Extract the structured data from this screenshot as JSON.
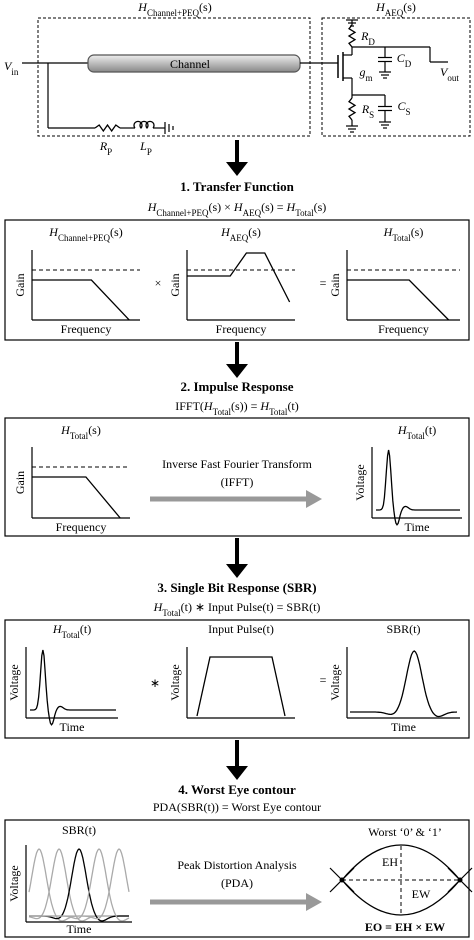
{
  "circuit": {
    "peq_label": {
      "sym": "H",
      "sub": "Channel+PEQ",
      "arg": "(s)"
    },
    "aeq_label": {
      "sym": "H",
      "sub": "AEQ",
      "arg": "(s)"
    },
    "vin": {
      "sym": "V",
      "sub": "in"
    },
    "channel": "Channel",
    "rp": {
      "sym": "R",
      "sub": "P"
    },
    "lp": {
      "sym": "L",
      "sub": "P"
    },
    "rd": {
      "sym": "R",
      "sub": "D"
    },
    "cd": {
      "sym": "C",
      "sub": "D"
    },
    "gm": {
      "sym": "g",
      "sub": "m"
    },
    "rs": {
      "sym": "R",
      "sub": "S"
    },
    "cs": {
      "sym": "C",
      "sub": "S"
    },
    "vout": {
      "sym": "V",
      "sub": "out"
    }
  },
  "steps": [
    {
      "title": "1. Transfer Function",
      "equation": [
        {
          "sym": "H",
          "sub": "Channel+PEQ",
          "arg": "(s)"
        },
        " × ",
        {
          "sym": "H",
          "sub": "AEQ",
          "arg": "(s)"
        },
        " = ",
        {
          "sym": "H",
          "sub": "Total",
          "arg": "(s)"
        }
      ],
      "panel": {
        "plots": [
          {
            "label": {
              "sym": "H",
              "sub": "Channel+PEQ",
              "arg": "(s)"
            },
            "ylabel": "Gain",
            "xlabel": "Frequency"
          },
          {
            "label": {
              "sym": "H",
              "sub": "AEQ",
              "arg": "(s)"
            },
            "ylabel": "Gain",
            "xlabel": "Frequency"
          },
          {
            "label": {
              "sym": "H",
              "sub": "Total",
              "arg": "(s)"
            },
            "ylabel": "Gain",
            "xlabel": "Frequency"
          }
        ],
        "operators": [
          "×",
          "="
        ]
      }
    },
    {
      "title": "2. Impulse Response",
      "equation": [
        "IFFT(",
        {
          "sym": "H",
          "sub": "Total",
          "arg": "(s)"
        },
        ") = ",
        {
          "sym": "H",
          "sub": "Total",
          "arg": "(t)"
        }
      ],
      "panel": {
        "plots": [
          {
            "label": {
              "sym": "H",
              "sub": "Total",
              "arg": "(s)"
            },
            "ylabel": "Gain",
            "xlabel": "Frequency"
          },
          {
            "label": {
              "sym": "H",
              "sub": "Total",
              "arg": "(t)"
            },
            "ylabel": "Voltage",
            "xlabel": "Time"
          }
        ],
        "arrow_text": [
          "Inverse Fast Fourier Transform",
          "(IFFT)"
        ]
      }
    },
    {
      "title": "3. Single Bit Response (SBR)",
      "equation": [
        {
          "sym": "H",
          "sub": "Total",
          "arg": "(t)"
        },
        " ∗ Input Pulse(t) = SBR(t)"
      ],
      "panel": {
        "plots": [
          {
            "label": {
              "sym": "H",
              "sub": "Total",
              "arg": "(t)"
            },
            "ylabel": "Voltage",
            "xlabel": "Time"
          },
          {
            "label": "Input Pulse(t)",
            "ylabel": "Voltage"
          },
          {
            "label": "SBR(t)",
            "ylabel": "Voltage",
            "xlabel": "Time"
          }
        ],
        "operators": [
          "∗",
          "="
        ]
      }
    },
    {
      "title": "4. Worst Eye contour",
      "equation": [
        "PDA(SBR(t)) = Worst Eye contour"
      ],
      "panel": {
        "plots": [
          {
            "label": "SBR(t)",
            "ylabel": "Voltage",
            "xlabel": "Time"
          }
        ],
        "arrow_text": [
          "Peak Distortion Analysis",
          "(PDA)"
        ],
        "eye": {
          "title": "Worst ‘0’ & ‘1’",
          "eh": "EH",
          "ew": "EW",
          "eo": "EO = EH × EW"
        }
      }
    }
  ]
}
